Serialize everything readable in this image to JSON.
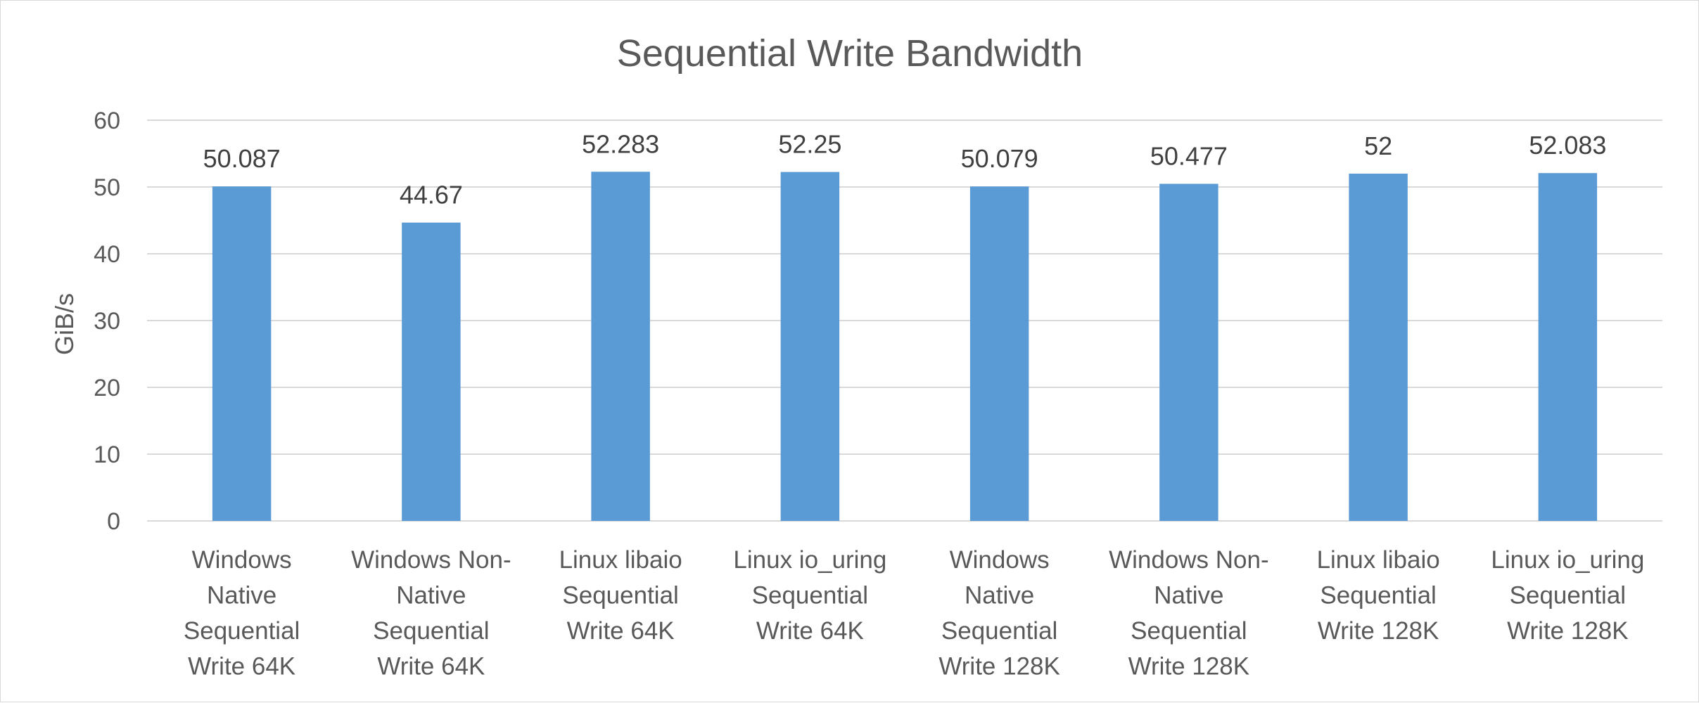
{
  "chart_data": {
    "type": "bar",
    "title": "Sequential Write Bandwidth",
    "xlabel": "",
    "ylabel": "GiB/s",
    "ylim": [
      0,
      60
    ],
    "yticks": [
      0,
      10,
      20,
      30,
      40,
      50,
      60
    ],
    "grid": true,
    "legend": "none",
    "bar_color": "#5b9bd5",
    "categories": [
      [
        "Windows",
        "Native",
        "Sequential",
        "Write 64K"
      ],
      [
        "Windows Non-",
        "Native",
        "Sequential",
        "Write 64K"
      ],
      [
        "Linux libaio",
        "Sequential",
        "Write 64K"
      ],
      [
        "Linux io_uring",
        "Sequential",
        "Write 64K"
      ],
      [
        "Windows",
        "Native",
        "Sequential",
        "Write 128K"
      ],
      [
        "Windows Non-",
        "Native",
        "Sequential",
        "Write 128K"
      ],
      [
        "Linux libaio",
        "Sequential",
        "Write 128K"
      ],
      [
        "Linux io_uring",
        "Sequential",
        "Write 128K"
      ]
    ],
    "values": [
      50.087,
      44.67,
      52.283,
      52.25,
      50.079,
      50.477,
      52,
      52.083
    ],
    "data_labels": [
      "50.087",
      "44.67",
      "52.283",
      "52.25",
      "50.079",
      "50.477",
      "52",
      "52.083"
    ]
  }
}
